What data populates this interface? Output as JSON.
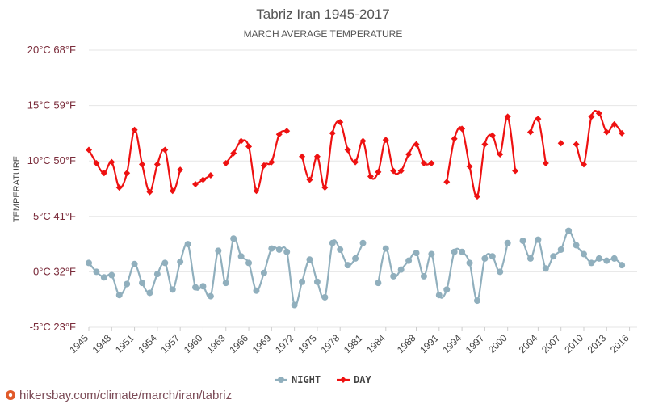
{
  "watermark": "hikersbay.com/climate/march/iran/tabriz",
  "chart_data": {
    "type": "line",
    "title": "Tabriz Iran 1945-2017",
    "subtitle": "MARCH AVERAGE TEMPERATURE",
    "ylabel": "TEMPERATURE",
    "ylim": [
      -5,
      20
    ],
    "yticks": [
      {
        "value": 20,
        "label": "20°C 68°F"
      },
      {
        "value": 15,
        "label": "15°C 59°F"
      },
      {
        "value": 10,
        "label": "10°C 50°F"
      },
      {
        "value": 5,
        "label": "5°C 41°F"
      },
      {
        "value": 0,
        "label": "0°C 32°F"
      },
      {
        "value": -5,
        "label": "-5°C 23°F"
      }
    ],
    "xlim": [
      1945,
      2017
    ],
    "xticks": [
      "1945",
      "1948",
      "1951",
      "1954",
      "1957",
      "1960",
      "1963",
      "1966",
      "1969",
      "1972",
      "1975",
      "1978",
      "1981",
      "1984",
      "1988",
      "1991",
      "1994",
      "1997",
      "2000",
      "2004",
      "2007",
      "2010",
      "2013",
      "2016"
    ],
    "grid": true,
    "legend_position": "bottom",
    "x": [
      1945,
      1946,
      1947,
      1948,
      1949,
      1950,
      1951,
      1952,
      1953,
      1954,
      1955,
      1956,
      1957,
      1958,
      1959,
      1960,
      1961,
      1962,
      1963,
      1964,
      1965,
      1966,
      1967,
      1968,
      1969,
      1970,
      1971,
      1972,
      1973,
      1974,
      1975,
      1976,
      1977,
      1978,
      1979,
      1980,
      1981,
      1982,
      1983,
      1984,
      1985,
      1986,
      1987,
      1988,
      1989,
      1990,
      1991,
      1992,
      1993,
      1994,
      1995,
      1996,
      1997,
      1998,
      1999,
      2000,
      2001,
      2002,
      2003,
      2004,
      2005,
      2006,
      2007,
      2008,
      2009,
      2010,
      2011,
      2012,
      2013,
      2014,
      2015,
      2016,
      2017
    ],
    "series": [
      {
        "name": "NIGHT",
        "color": "#90afbd",
        "marker": "circle",
        "values": [
          0.8,
          0.0,
          -0.5,
          -0.3,
          -2.1,
          -1.1,
          0.7,
          -1.0,
          -1.9,
          -0.2,
          0.8,
          -1.6,
          0.9,
          2.5,
          -1.4,
          -1.3,
          -2.2,
          1.9,
          -1.0,
          3.0,
          1.4,
          0.8,
          -1.7,
          -0.1,
          2.1,
          2.0,
          1.8,
          -3.0,
          -0.9,
          1.1,
          -0.9,
          -2.3,
          2.6,
          2.0,
          0.6,
          1.2,
          2.6,
          null,
          -1.0,
          2.1,
          -0.4,
          0.2,
          1.0,
          1.7,
          -0.4,
          1.6,
          -2.1,
          -1.6,
          1.8,
          1.8,
          0.8,
          -2.6,
          1.2,
          1.4,
          0.0,
          2.6,
          null,
          2.8,
          1.2,
          2.9,
          0.3,
          1.4,
          2.0,
          3.7,
          2.4,
          1.6,
          0.8,
          1.2,
          1.0,
          1.2,
          0.6,
          null,
          null
        ]
      },
      {
        "name": "DAY",
        "color": "#ee1111",
        "marker": "diamond",
        "values": [
          11.0,
          9.8,
          8.9,
          9.9,
          7.6,
          8.9,
          12.8,
          9.7,
          7.2,
          9.7,
          11.0,
          7.3,
          9.2,
          null,
          7.9,
          8.3,
          8.7,
          null,
          9.8,
          10.7,
          11.8,
          11.3,
          7.3,
          9.6,
          9.9,
          12.4,
          12.7,
          null,
          10.4,
          8.3,
          10.4,
          7.6,
          12.5,
          13.5,
          11.0,
          9.9,
          11.8,
          8.6,
          9.0,
          11.9,
          9.1,
          9.1,
          10.6,
          11.5,
          9.8,
          9.8,
          null,
          8.1,
          12.0,
          12.9,
          9.5,
          6.8,
          11.5,
          12.3,
          10.6,
          14.0,
          9.1,
          null,
          12.6,
          13.8,
          9.8,
          null,
          11.6,
          null,
          11.5,
          9.7,
          14.0,
          14.3,
          12.6,
          13.3,
          12.5,
          null,
          null
        ]
      }
    ]
  }
}
